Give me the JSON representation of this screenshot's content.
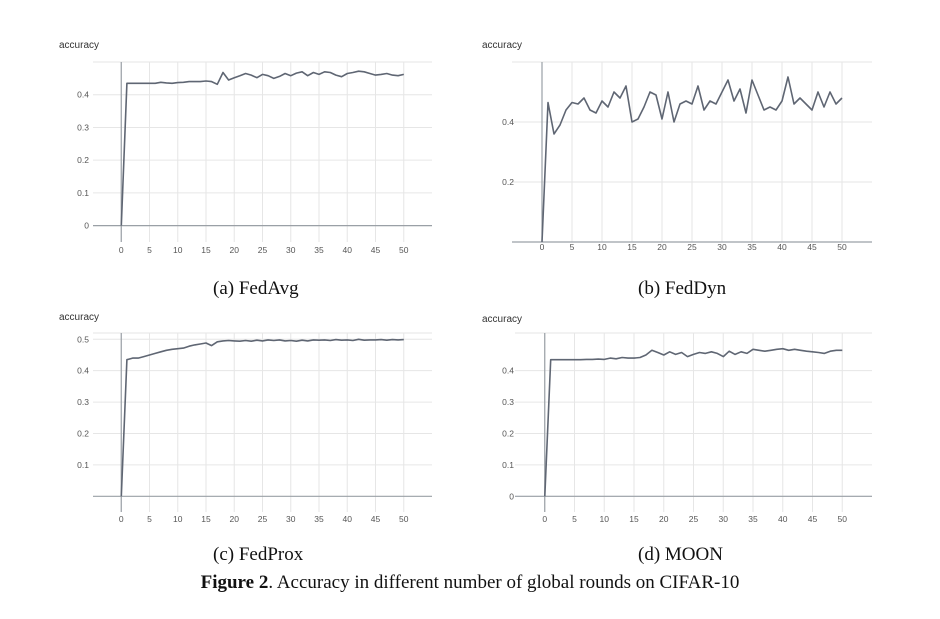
{
  "figure_caption": {
    "label": "Figure 2",
    "text": ". Accuracy in different number of global rounds on CIFAR-10"
  },
  "colors": {
    "line": "#5f6673",
    "axis": "#9aa0a6",
    "grid": "#e6e6e6"
  },
  "chart_data": [
    {
      "type": "line",
      "caption": "(a) FedAvg",
      "ylabel": "accuracy",
      "xlim": [
        -5,
        55
      ],
      "ylim": [
        -0.05,
        0.5
      ],
      "xticks": [
        "0",
        "5",
        "10",
        "15",
        "20",
        "25",
        "30",
        "35",
        "40",
        "45",
        "50"
      ],
      "yticks": [
        "0",
        "0.1",
        "0.2",
        "0.3",
        "0.4"
      ],
      "ytick_values": [
        0,
        0.1,
        0.2,
        0.3,
        0.4
      ],
      "grid": true,
      "series": [
        {
          "x": [
            0,
            1,
            2,
            3,
            4,
            5,
            6,
            7,
            8,
            9,
            10,
            11,
            12,
            13,
            14,
            15,
            16,
            17,
            18,
            19,
            20,
            21,
            22,
            23,
            24,
            25,
            26,
            27,
            28,
            29,
            30,
            31,
            32,
            33,
            34,
            35,
            36,
            37,
            38,
            39,
            40,
            41,
            42,
            43,
            44,
            45,
            46,
            47,
            48,
            49,
            50
          ],
          "y": [
            0,
            0.435,
            0.435,
            0.435,
            0.435,
            0.435,
            0.435,
            0.438,
            0.436,
            0.435,
            0.437,
            0.438,
            0.44,
            0.44,
            0.44,
            0.442,
            0.44,
            0.432,
            0.468,
            0.445,
            0.452,
            0.458,
            0.465,
            0.46,
            0.452,
            0.462,
            0.458,
            0.45,
            0.456,
            0.465,
            0.458,
            0.466,
            0.47,
            0.458,
            0.468,
            0.462,
            0.47,
            0.468,
            0.46,
            0.455,
            0.465,
            0.468,
            0.472,
            0.47,
            0.465,
            0.46,
            0.462,
            0.465,
            0.46,
            0.458,
            0.462
          ]
        }
      ]
    },
    {
      "type": "line",
      "caption": "(b) FedDyn",
      "ylabel": "accuracy",
      "xlim": [
        -5,
        55
      ],
      "ylim": [
        0,
        0.6
      ],
      "xticks": [
        "0",
        "5",
        "10",
        "15",
        "20",
        "25",
        "30",
        "35",
        "40",
        "45",
        "50"
      ],
      "yticks": [
        "0.2",
        "0.4"
      ],
      "ytick_values": [
        0.2,
        0.4
      ],
      "grid": true,
      "series": [
        {
          "x": [
            0,
            1,
            2,
            3,
            4,
            5,
            6,
            7,
            8,
            9,
            10,
            11,
            12,
            13,
            14,
            15,
            16,
            17,
            18,
            19,
            20,
            21,
            22,
            23,
            24,
            25,
            26,
            27,
            28,
            29,
            30,
            31,
            32,
            33,
            34,
            35,
            36,
            37,
            38,
            39,
            40,
            41,
            42,
            43,
            44,
            45,
            46,
            47,
            48,
            49,
            50
          ],
          "y": [
            0,
            0.465,
            0.36,
            0.39,
            0.44,
            0.465,
            0.46,
            0.48,
            0.44,
            0.43,
            0.47,
            0.45,
            0.5,
            0.48,
            0.52,
            0.4,
            0.41,
            0.45,
            0.5,
            0.49,
            0.41,
            0.5,
            0.4,
            0.46,
            0.47,
            0.46,
            0.52,
            0.44,
            0.47,
            0.46,
            0.5,
            0.54,
            0.47,
            0.51,
            0.43,
            0.54,
            0.49,
            0.44,
            0.45,
            0.44,
            0.47,
            0.55,
            0.46,
            0.48,
            0.46,
            0.44,
            0.5,
            0.45,
            0.5,
            0.46,
            0.48
          ]
        }
      ]
    },
    {
      "type": "line",
      "caption": "(c) FedProx",
      "ylabel": "accuracy",
      "xlim": [
        -5,
        55
      ],
      "ylim": [
        -0.05,
        0.52
      ],
      "xticks": [
        "0",
        "5",
        "10",
        "15",
        "20",
        "25",
        "30",
        "35",
        "40",
        "45",
        "50"
      ],
      "yticks": [
        "0.1",
        "0.2",
        "0.3",
        "0.4",
        "0.5"
      ],
      "ytick_values": [
        0.1,
        0.2,
        0.3,
        0.4,
        0.5
      ],
      "grid": true,
      "series": [
        {
          "x": [
            0,
            1,
            2,
            3,
            4,
            5,
            6,
            7,
            8,
            9,
            10,
            11,
            12,
            13,
            14,
            15,
            16,
            17,
            18,
            19,
            20,
            21,
            22,
            23,
            24,
            25,
            26,
            27,
            28,
            29,
            30,
            31,
            32,
            33,
            34,
            35,
            36,
            37,
            38,
            39,
            40,
            41,
            42,
            43,
            44,
            45,
            46,
            47,
            48,
            49,
            50
          ],
          "y": [
            0,
            0.435,
            0.44,
            0.44,
            0.445,
            0.45,
            0.455,
            0.46,
            0.465,
            0.468,
            0.47,
            0.472,
            0.478,
            0.482,
            0.485,
            0.488,
            0.48,
            0.492,
            0.495,
            0.496,
            0.495,
            0.494,
            0.496,
            0.494,
            0.497,
            0.495,
            0.498,
            0.496,
            0.498,
            0.495,
            0.496,
            0.494,
            0.497,
            0.495,
            0.498,
            0.497,
            0.498,
            0.496,
            0.499,
            0.497,
            0.498,
            0.496,
            0.5,
            0.497,
            0.498,
            0.498,
            0.499,
            0.497,
            0.499,
            0.498,
            0.499
          ]
        }
      ]
    },
    {
      "type": "line",
      "caption": "(d) MOON",
      "ylabel": "accuracy",
      "xlim": [
        -5,
        55
      ],
      "ylim": [
        -0.05,
        0.52
      ],
      "xticks": [
        "0",
        "5",
        "10",
        "15",
        "20",
        "25",
        "30",
        "35",
        "40",
        "45",
        "50"
      ],
      "yticks": [
        "0",
        "0.1",
        "0.2",
        "0.3",
        "0.4"
      ],
      "ytick_values": [
        0,
        0.1,
        0.2,
        0.3,
        0.4
      ],
      "grid": true,
      "series": [
        {
          "x": [
            0,
            1,
            2,
            3,
            4,
            5,
            6,
            7,
            8,
            9,
            10,
            11,
            12,
            13,
            14,
            15,
            16,
            17,
            18,
            19,
            20,
            21,
            22,
            23,
            24,
            25,
            26,
            27,
            28,
            29,
            30,
            31,
            32,
            33,
            34,
            35,
            36,
            37,
            38,
            39,
            40,
            41,
            42,
            43,
            44,
            45,
            46,
            47,
            48,
            49,
            50
          ],
          "y": [
            0,
            0.435,
            0.435,
            0.435,
            0.435,
            0.435,
            0.435,
            0.436,
            0.436,
            0.437,
            0.436,
            0.44,
            0.438,
            0.442,
            0.44,
            0.44,
            0.442,
            0.45,
            0.465,
            0.458,
            0.45,
            0.46,
            0.452,
            0.458,
            0.445,
            0.452,
            0.458,
            0.455,
            0.46,
            0.455,
            0.445,
            0.462,
            0.452,
            0.46,
            0.455,
            0.468,
            0.465,
            0.462,
            0.465,
            0.468,
            0.47,
            0.465,
            0.468,
            0.465,
            0.462,
            0.46,
            0.458,
            0.455,
            0.462,
            0.465,
            0.465
          ]
        }
      ]
    }
  ]
}
